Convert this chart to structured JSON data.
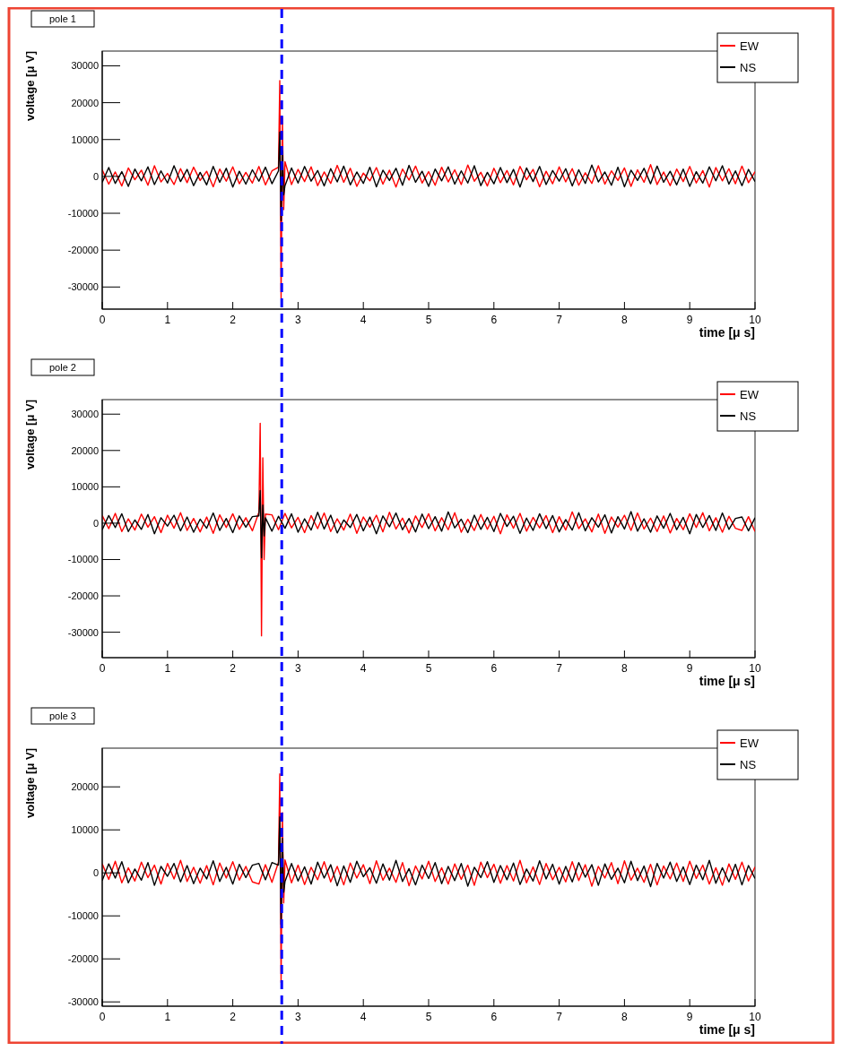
{
  "chart_data": [
    {
      "type": "line",
      "title": "pole 1",
      "xlabel": "time [μ s]",
      "ylabel": "voltage [μ V]",
      "xlim": [
        0,
        10
      ],
      "ylim": [
        -36000,
        34000
      ],
      "xticks": [
        0,
        1,
        2,
        3,
        4,
        5,
        6,
        7,
        8,
        9,
        10
      ],
      "yticks": [
        -30000,
        -20000,
        -10000,
        0,
        10000,
        20000,
        30000
      ],
      "legend": "top right",
      "ref_lines": [
        {
          "axis": "x",
          "value": 2.75,
          "color": "#0000ff",
          "line_style": "dashed"
        }
      ],
      "x": [
        0,
        0.1,
        0.2,
        0.3,
        0.4,
        0.5,
        0.6,
        0.7,
        0.8,
        0.9,
        1,
        1.1,
        1.2,
        1.3,
        1.4,
        1.5,
        1.6,
        1.7,
        1.8,
        1.9,
        2,
        2.1,
        2.2,
        2.3,
        2.4,
        2.5,
        2.6,
        2.7,
        2.72,
        2.74,
        2.76,
        2.78,
        2.8,
        2.9,
        3,
        3.1,
        3.2,
        3.3,
        3.4,
        3.5,
        3.6,
        3.7,
        3.8,
        3.9,
        4,
        4.1,
        4.2,
        4.3,
        4.4,
        4.5,
        4.6,
        4.7,
        4.8,
        4.9,
        5,
        5.1,
        5.2,
        5.3,
        5.4,
        5.5,
        5.6,
        5.7,
        5.8,
        5.9,
        6,
        6.1,
        6.2,
        6.3,
        6.4,
        6.5,
        6.6,
        6.7,
        6.8,
        6.9,
        7,
        7.1,
        7.2,
        7.3,
        7.4,
        7.5,
        7.6,
        7.7,
        7.8,
        7.9,
        8,
        8.1,
        8.2,
        8.3,
        8.4,
        8.5,
        8.6,
        8.7,
        8.8,
        8.9,
        9,
        9.1,
        9.2,
        9.3,
        9.4,
        9.5,
        9.6,
        9.7,
        9.8,
        9.9,
        10
      ],
      "series": [
        {
          "name": "EW",
          "color": "#ff0000",
          "values": [
            1800,
            -2100,
            1200,
            -2600,
            2300,
            -900,
            1700,
            -2400,
            2900,
            -1500,
            800,
            -2200,
            2100,
            -1700,
            2500,
            -1100,
            1400,
            -2800,
            2000,
            -1300,
            2600,
            -2000,
            1100,
            -1800,
            2700,
            -2300,
            1500,
            2500,
            26000,
            -33000,
            16000,
            -9000,
            4000,
            -2200,
            1900,
            -1400,
            2600,
            -2500,
            1200,
            -1900,
            3000,
            -1600,
            2200,
            -2700,
            900,
            -1200,
            2400,
            -2100,
            1700,
            -2900,
            2000,
            -1000,
            2800,
            -1800,
            1300,
            -2400,
            2500,
            -1500,
            1800,
            -2200,
            3100,
            -1300,
            1100,
            -2600,
            2200,
            -1700,
            1600,
            -2300,
            2700,
            -900,
            1900,
            -2800,
            1400,
            -2000,
            2600,
            -1500,
            2100,
            -2400,
            1000,
            -1900,
            2900,
            -2100,
            1500,
            -1100,
            2300,
            -2700,
            1800,
            -1600,
            3200,
            -2200,
            1200,
            -2500,
            2000,
            -1400,
            2700,
            -1800,
            1600,
            -2900,
            2400,
            -1200,
            2100,
            -2000,
            2800,
            -1700,
            1300
          ]
        },
        {
          "name": "NS",
          "color": "#000000",
          "values": [
            -1600,
            2400,
            -1900,
            1300,
            -2700,
            2000,
            -1200,
            2600,
            -2200,
            1500,
            -1800,
            2900,
            -1400,
            1900,
            -2500,
            1100,
            -2300,
            2700,
            -1600,
            2200,
            -2900,
            1400,
            -2100,
            1800,
            -1300,
            2500,
            -2000,
            1500,
            12000,
            -12000,
            7000,
            -5000,
            -2500,
            2300,
            -1800,
            2700,
            -1300,
            1600,
            -2600,
            2100,
            -1500,
            2800,
            -2300,
            1200,
            -1900,
            2500,
            -2800,
            1700,
            -1100,
            2200,
            -2400,
            3000,
            -1600,
            1400,
            -2700,
            2000,
            -1200,
            2600,
            -2100,
            1500,
            -1800,
            2900,
            -2500,
            1100,
            -2000,
            2400,
            -1700,
            1900,
            -2900,
            2300,
            -1400,
            2700,
            -2200,
            1600,
            -1300,
            2100,
            -2600,
            1800,
            -1900,
            3100,
            -1500,
            1200,
            -2400,
            2500,
            -2800,
            1700,
            -1100,
            2200,
            -2000,
            2800,
            -1600,
            1400,
            -2300,
            2000,
            -2700,
            1300,
            -1800,
            2600,
            -1200,
            2900,
            -2100,
            1500,
            -2500,
            1900,
            -1400
          ]
        }
      ]
    },
    {
      "type": "line",
      "title": "pole 2",
      "xlabel": "time [μ s]",
      "ylabel": "voltage [μ V]",
      "xlim": [
        0,
        10
      ],
      "ylim": [
        -37000,
        34000
      ],
      "xticks": [
        0,
        1,
        2,
        3,
        4,
        5,
        6,
        7,
        8,
        9,
        10
      ],
      "yticks": [
        -30000,
        -20000,
        -10000,
        0,
        10000,
        20000,
        30000
      ],
      "legend": "top right",
      "ref_lines": [
        {
          "axis": "x",
          "value": 2.75,
          "color": "#0000ff",
          "line_style": "dashed"
        }
      ],
      "x": [
        0,
        0.1,
        0.2,
        0.3,
        0.4,
        0.5,
        0.6,
        0.7,
        0.8,
        0.9,
        1,
        1.1,
        1.2,
        1.3,
        1.4,
        1.5,
        1.6,
        1.7,
        1.8,
        1.9,
        2,
        2.1,
        2.2,
        2.3,
        2.4,
        2.42,
        2.44,
        2.46,
        2.48,
        2.5,
        2.6,
        2.7,
        2.8,
        2.9,
        3,
        3.1,
        3.2,
        3.3,
        3.4,
        3.5,
        3.6,
        3.7,
        3.8,
        3.9,
        4,
        4.1,
        4.2,
        4.3,
        4.4,
        4.5,
        4.6,
        4.7,
        4.8,
        4.9,
        5,
        5.1,
        5.2,
        5.3,
        5.4,
        5.5,
        5.6,
        5.7,
        5.8,
        5.9,
        6,
        6.1,
        6.2,
        6.3,
        6.4,
        6.5,
        6.6,
        6.7,
        6.8,
        6.9,
        7,
        7.1,
        7.2,
        7.3,
        7.4,
        7.5,
        7.6,
        7.7,
        7.8,
        7.9,
        8,
        8.1,
        8.2,
        8.3,
        8.4,
        8.5,
        8.6,
        8.7,
        8.8,
        8.9,
        9,
        9.1,
        9.2,
        9.3,
        9.4,
        9.5,
        9.6,
        9.7,
        9.8,
        9.9,
        10
      ],
      "series": [
        {
          "name": "EW",
          "color": "#ff0000",
          "values": [
            2100,
            -1500,
            2700,
            -2300,
            1200,
            -1900,
            2500,
            -1100,
            1800,
            -2600,
            2200,
            -1400,
            2900,
            -2000,
            1300,
            -2400,
            1700,
            -2800,
            2300,
            -1200,
            2600,
            -1700,
            1500,
            -2100,
            3000,
            27500,
            -31000,
            18000,
            -10000,
            2500,
            2300,
            -1800,
            2700,
            -1300,
            1600,
            -2600,
            2100,
            -1500,
            2800,
            -2300,
            1200,
            -1900,
            2500,
            -2800,
            1700,
            -1100,
            2200,
            -2400,
            3000,
            -1600,
            1400,
            -2700,
            2000,
            -1200,
            2600,
            -2100,
            1500,
            -1800,
            2900,
            -2500,
            1100,
            -2000,
            2400,
            -1700,
            1900,
            -2900,
            2300,
            -1400,
            2700,
            -2200,
            1600,
            -1300,
            2100,
            -2600,
            1800,
            -1900,
            3100,
            -1500,
            1200,
            -2400,
            2500,
            -2800,
            1700,
            -1100,
            2200,
            -2000,
            2800,
            -1600,
            1400,
            -2300,
            2000,
            -2700,
            1300,
            -1800,
            2600,
            -1200,
            2900,
            -2100,
            1500,
            -2500,
            1900,
            -1400,
            -2000,
            1800,
            -2300
          ]
        },
        {
          "name": "NS",
          "color": "#000000",
          "values": [
            -1800,
            2100,
            -1200,
            2600,
            -2300,
            900,
            -1700,
            2400,
            -2900,
            1500,
            -800,
            2200,
            -2100,
            1700,
            -2500,
            1100,
            -1400,
            2800,
            -2000,
            1300,
            -2600,
            2000,
            -1100,
            1800,
            2000,
            9000,
            -9500,
            5000,
            -3500,
            1500,
            -2200,
            1900,
            -1400,
            2600,
            -2500,
            1200,
            -1900,
            3000,
            -1600,
            2200,
            -2700,
            900,
            -1200,
            2400,
            -2100,
            1700,
            -2900,
            2000,
            -1000,
            2800,
            -1800,
            1300,
            -2400,
            2500,
            -1500,
            1800,
            -2200,
            3100,
            -1300,
            1100,
            -2600,
            2200,
            -1700,
            1600,
            -2300,
            2700,
            -900,
            1900,
            -2800,
            1400,
            -2000,
            2600,
            -1500,
            2100,
            -2400,
            1000,
            -1900,
            2900,
            -2100,
            1500,
            -1100,
            2300,
            -2700,
            1800,
            -1600,
            3200,
            -2200,
            1200,
            -2500,
            2000,
            -1400,
            2700,
            -1800,
            1600,
            -2900,
            2400,
            -1200,
            2100,
            -2000,
            2800,
            -1700,
            1300,
            1700,
            -2100,
            1500
          ]
        }
      ]
    },
    {
      "type": "line",
      "title": "pole 3",
      "xlabel": "time [μ s]",
      "ylabel": "voltage [μ V]",
      "xlim": [
        0,
        10
      ],
      "ylim": [
        -31000,
        29000
      ],
      "xticks": [
        0,
        1,
        2,
        3,
        4,
        5,
        6,
        7,
        8,
        9,
        10
      ],
      "yticks": [
        -30000,
        -20000,
        -10000,
        0,
        10000,
        20000
      ],
      "legend": "top right",
      "ref_lines": [
        {
          "axis": "x",
          "value": 2.75,
          "color": "#0000ff",
          "line_style": "dashed"
        }
      ],
      "x": [
        0,
        0.1,
        0.2,
        0.3,
        0.4,
        0.5,
        0.6,
        0.7,
        0.8,
        0.9,
        1,
        1.1,
        1.2,
        1.3,
        1.4,
        1.5,
        1.6,
        1.7,
        1.8,
        1.9,
        2,
        2.1,
        2.2,
        2.3,
        2.4,
        2.5,
        2.6,
        2.7,
        2.72,
        2.74,
        2.76,
        2.78,
        2.8,
        2.9,
        3,
        3.1,
        3.2,
        3.3,
        3.4,
        3.5,
        3.6,
        3.7,
        3.8,
        3.9,
        4,
        4.1,
        4.2,
        4.3,
        4.4,
        4.5,
        4.6,
        4.7,
        4.8,
        4.9,
        5,
        5.1,
        5.2,
        5.3,
        5.4,
        5.5,
        5.6,
        5.7,
        5.8,
        5.9,
        6,
        6.1,
        6.2,
        6.3,
        6.4,
        6.5,
        6.6,
        6.7,
        6.8,
        6.9,
        7,
        7.1,
        7.2,
        7.3,
        7.4,
        7.5,
        7.6,
        7.7,
        7.8,
        7.9,
        8,
        8.1,
        8.2,
        8.3,
        8.4,
        8.5,
        8.6,
        8.7,
        8.8,
        8.9,
        9,
        9.1,
        9.2,
        9.3,
        9.4,
        9.5,
        9.6,
        9.7,
        9.8,
        9.9,
        10
      ],
      "series": [
        {
          "name": "EW",
          "color": "#ff0000",
          "values": [
            2100,
            -1500,
            2700,
            -2300,
            1200,
            -1900,
            2500,
            -1100,
            1800,
            -2600,
            2200,
            -1400,
            2900,
            -2000,
            1300,
            -2400,
            1700,
            -2800,
            2300,
            -1200,
            2600,
            -1700,
            1500,
            -2100,
            -2600,
            1900,
            -2200,
            2500,
            23000,
            -25500,
            14000,
            -7000,
            3000,
            -2300,
            1800,
            -2700,
            1300,
            -1600,
            2600,
            -2100,
            1500,
            -2800,
            2300,
            -1200,
            1900,
            -2500,
            2800,
            -1700,
            1100,
            -2200,
            2400,
            -3000,
            1600,
            -1400,
            2700,
            -2000,
            1200,
            -2600,
            2100,
            -1500,
            1800,
            -2900,
            2500,
            -1100,
            2000,
            -2400,
            1700,
            -1900,
            2900,
            -2300,
            1400,
            -2700,
            2200,
            -1600,
            1300,
            -2100,
            2600,
            -1800,
            1900,
            -3100,
            1500,
            -1200,
            2400,
            -2500,
            2800,
            -1700,
            1100,
            -2200,
            2000,
            -2800,
            1600,
            -1400,
            2300,
            -2000,
            2700,
            -1300,
            1800,
            -2600,
            1200,
            -2900,
            2100,
            -1500,
            2500,
            -1900,
            1400
          ]
        },
        {
          "name": "NS",
          "color": "#000000",
          "values": [
            -1800,
            2100,
            -1200,
            2600,
            -2300,
            900,
            -1700,
            2400,
            -2900,
            1500,
            -800,
            2200,
            -2100,
            1700,
            -2500,
            1100,
            -1400,
            2800,
            -2000,
            1300,
            -2600,
            2000,
            -1100,
            1800,
            2200,
            -1600,
            2400,
            1800,
            13000,
            -12000,
            8000,
            -4500,
            -2000,
            2200,
            -1900,
            1400,
            -2600,
            2500,
            -1200,
            1900,
            -3000,
            1600,
            -2200,
            2700,
            -900,
            1200,
            -2400,
            2100,
            -1700,
            2900,
            -2000,
            1000,
            -2800,
            1800,
            -1300,
            2400,
            -2500,
            1500,
            -1800,
            2200,
            -3100,
            1300,
            -1100,
            2600,
            -2200,
            1700,
            -1600,
            2300,
            -2700,
            900,
            -1900,
            2800,
            -1400,
            2000,
            -2600,
            1500,
            -2100,
            2400,
            -1000,
            1900,
            -2900,
            2100,
            -1500,
            1100,
            -2300,
            2700,
            -1800,
            1600,
            -3200,
            2200,
            -1200,
            2500,
            -2000,
            1400,
            -2700,
            1800,
            -1600,
            2900,
            -2400,
            1200,
            -2100,
            2000,
            -2800,
            1700,
            -1300
          ]
        }
      ]
    }
  ]
}
